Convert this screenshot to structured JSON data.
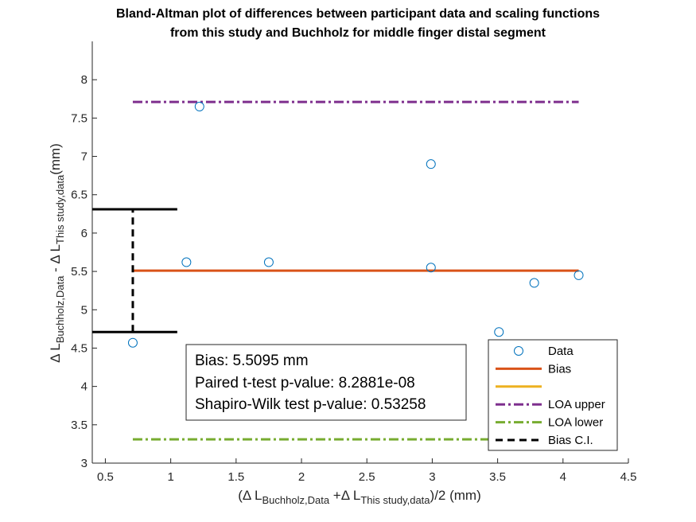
{
  "chart_data": {
    "type": "scatter",
    "title": [
      "Bland-Altman plot of differences between participant data and scaling functions",
      "from this study and Buchholz for middle finger distal segment"
    ],
    "xlabel": {
      "parts": [
        {
          "text": "(Δ L",
          "sub": false
        },
        {
          "text": "Buchholz,Data",
          "sub": true
        },
        {
          "text": " +Δ L",
          "sub": false
        },
        {
          "text": "This study,data",
          "sub": true
        },
        {
          "text": ")/2 (mm)",
          "sub": false
        }
      ]
    },
    "ylabel": {
      "parts": [
        {
          "text": "Δ L",
          "sub": false
        },
        {
          "text": "Buchholz,Data",
          "sub": true
        },
        {
          "text": " - Δ L",
          "sub": false
        },
        {
          "text": "This study,data",
          "sub": true
        },
        {
          "text": "(mm)",
          "sub": false
        }
      ]
    },
    "xlim": [
      0.4,
      4.5
    ],
    "ylim": [
      3.0,
      8.5
    ],
    "xticks": [
      0.5,
      1,
      1.5,
      2,
      2.5,
      3,
      3.5,
      4,
      4.5
    ],
    "xtick_labels": [
      "0.5",
      "1",
      "1.5",
      "2",
      "2.5",
      "3",
      "3.5",
      "4",
      "4.5"
    ],
    "yticks": [
      3,
      3.5,
      4,
      4.5,
      5,
      5.5,
      6,
      6.5,
      7,
      7.5,
      8
    ],
    "ytick_labels": [
      "3",
      "3.5",
      "4",
      "4.5",
      "5",
      "5.5",
      "6",
      "6.5",
      "7",
      "7.5",
      "8"
    ],
    "grid": false,
    "series": [
      {
        "name": "Data",
        "style": "marker-circle",
        "color": "#0072BD",
        "x": [
          0.71,
          1.12,
          1.22,
          1.75,
          2.99,
          2.99,
          3.51,
          3.78,
          4.12
        ],
        "y": [
          4.57,
          5.62,
          7.65,
          5.62,
          6.9,
          5.55,
          4.71,
          5.35,
          5.45
        ]
      },
      {
        "name": "Bias",
        "style": "solid",
        "color": "#D95319",
        "x": [
          0.71,
          4.12
        ],
        "y": [
          5.51,
          5.51
        ]
      },
      {
        "name": "",
        "style": "solid",
        "color": "#EDB120",
        "x": [],
        "y": []
      },
      {
        "name": "LOA upper",
        "style": "dashdot",
        "color": "#7E2F8E",
        "x": [
          0.71,
          4.12
        ],
        "y": [
          7.71,
          7.71
        ]
      },
      {
        "name": "LOA lower",
        "style": "dashdot",
        "color": "#77AC30",
        "x": [
          0.71,
          4.12
        ],
        "y": [
          3.31,
          3.31
        ]
      },
      {
        "name": "Bias C.I.",
        "style": "dashed",
        "color": "#000000",
        "x": [
          0.71,
          0.71
        ],
        "y": [
          4.71,
          6.31
        ],
        "caps_x": [
          0.4,
          1.05
        ]
      }
    ],
    "legend_placement": "bottom-right",
    "annotation": [
      "Bias: 5.5095 mm",
      "Paired t-test p-value: 8.2881e-08",
      "Shapiro-Wilk test p-value: 0.53258"
    ]
  }
}
